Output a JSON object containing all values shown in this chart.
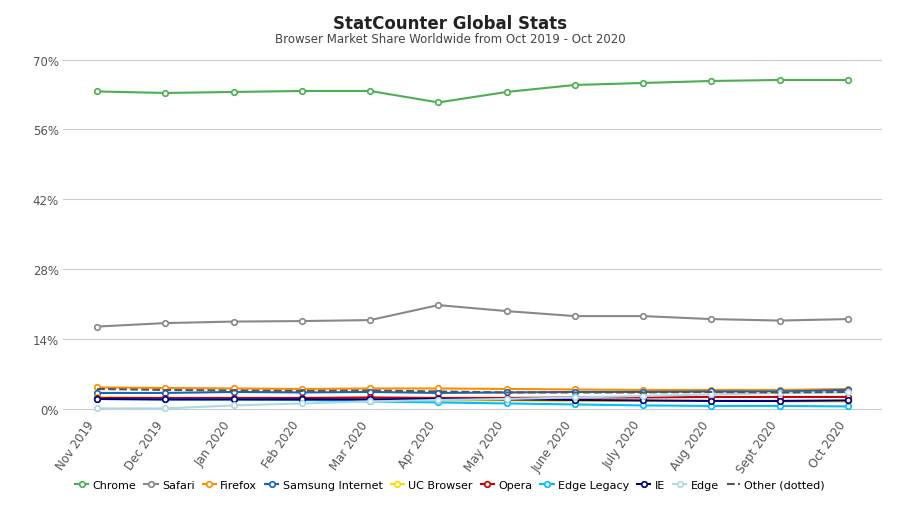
{
  "title": "StatCounter Global Stats",
  "subtitle": "Browser Market Share Worldwide from Oct 2019 - Oct 2020",
  "x_labels": [
    "Nov 2019",
    "Dec 2019",
    "Jan 2020",
    "Feb 2020",
    "Mar 2020",
    "Apr 2020",
    "May 2020",
    "June 2020",
    "July 2020",
    "Aug 2020",
    "Sept 2020",
    "Oct 2020"
  ],
  "series": {
    "Chrome": {
      "color": "#4caf50",
      "marker": "o",
      "linestyle": "-",
      "values": [
        63.6,
        63.3,
        63.5,
        63.7,
        63.7,
        61.4,
        63.5,
        64.9,
        65.3,
        65.7,
        65.9,
        65.9
      ]
    },
    "Safari": {
      "color": "#888888",
      "marker": "o",
      "linestyle": "-",
      "values": [
        16.5,
        17.2,
        17.5,
        17.6,
        17.8,
        20.8,
        19.6,
        18.6,
        18.6,
        18.0,
        17.7,
        18.0
      ]
    },
    "Firefox": {
      "color": "#ff8c00",
      "marker": "o",
      "linestyle": "-",
      "values": [
        4.3,
        4.2,
        4.1,
        4.0,
        4.1,
        4.1,
        4.0,
        3.9,
        3.8,
        3.8,
        3.8,
        4.0
      ]
    },
    "Samsung Internet": {
      "color": "#1565c0",
      "marker": "o",
      "linestyle": "-",
      "values": [
        3.2,
        3.2,
        3.4,
        3.3,
        3.4,
        3.2,
        3.3,
        3.4,
        3.4,
        3.5,
        3.5,
        3.8
      ]
    },
    "UC Browser": {
      "color": "#ffd700",
      "marker": "o",
      "linestyle": "-",
      "values": [
        2.3,
        2.2,
        2.1,
        2.0,
        1.9,
        1.7,
        1.7,
        1.6,
        1.6,
        1.6,
        1.5,
        1.5
      ]
    },
    "Opera": {
      "color": "#cc0000",
      "marker": "o",
      "linestyle": "-",
      "values": [
        2.2,
        2.2,
        2.2,
        2.2,
        2.3,
        2.2,
        2.2,
        2.3,
        2.3,
        2.4,
        2.4,
        2.4
      ]
    },
    "Edge Legacy": {
      "color": "#00bfff",
      "marker": "o",
      "linestyle": "-",
      "values": [
        2.0,
        1.9,
        1.9,
        1.8,
        1.5,
        1.3,
        1.1,
        0.9,
        0.7,
        0.6,
        0.6,
        0.5
      ]
    },
    "IE": {
      "color": "#000080",
      "marker": "o",
      "linestyle": "-",
      "values": [
        2.0,
        1.9,
        1.9,
        1.9,
        1.9,
        2.0,
        1.9,
        1.8,
        1.7,
        1.6,
        1.6,
        1.7
      ]
    },
    "Edge": {
      "color": "#add8e6",
      "marker": "o",
      "linestyle": "-",
      "values": [
        0.1,
        0.1,
        0.7,
        1.1,
        1.5,
        1.8,
        2.0,
        2.3,
        2.6,
        2.9,
        3.2,
        3.3
      ]
    },
    "Other": {
      "color": "#555555",
      "marker": "None",
      "linestyle": "--",
      "values": [
        4.0,
        3.8,
        3.7,
        3.6,
        3.7,
        3.5,
        3.3,
        3.3,
        3.3,
        3.4,
        3.3,
        3.4
      ]
    }
  },
  "yticks": [
    0,
    14,
    28,
    42,
    56,
    70
  ],
  "ylim": [
    -1,
    73
  ],
  "bg_color": "#ffffff",
  "grid_color": "#cccccc",
  "title_fontsize": 12,
  "subtitle_fontsize": 8.5,
  "tick_fontsize": 8.5,
  "legend_fontsize": 8,
  "legend_order": [
    "Chrome",
    "Safari",
    "Firefox",
    "Samsung Internet",
    "UC Browser",
    "Opera",
    "Edge Legacy",
    "IE",
    "Edge",
    "Other"
  ]
}
